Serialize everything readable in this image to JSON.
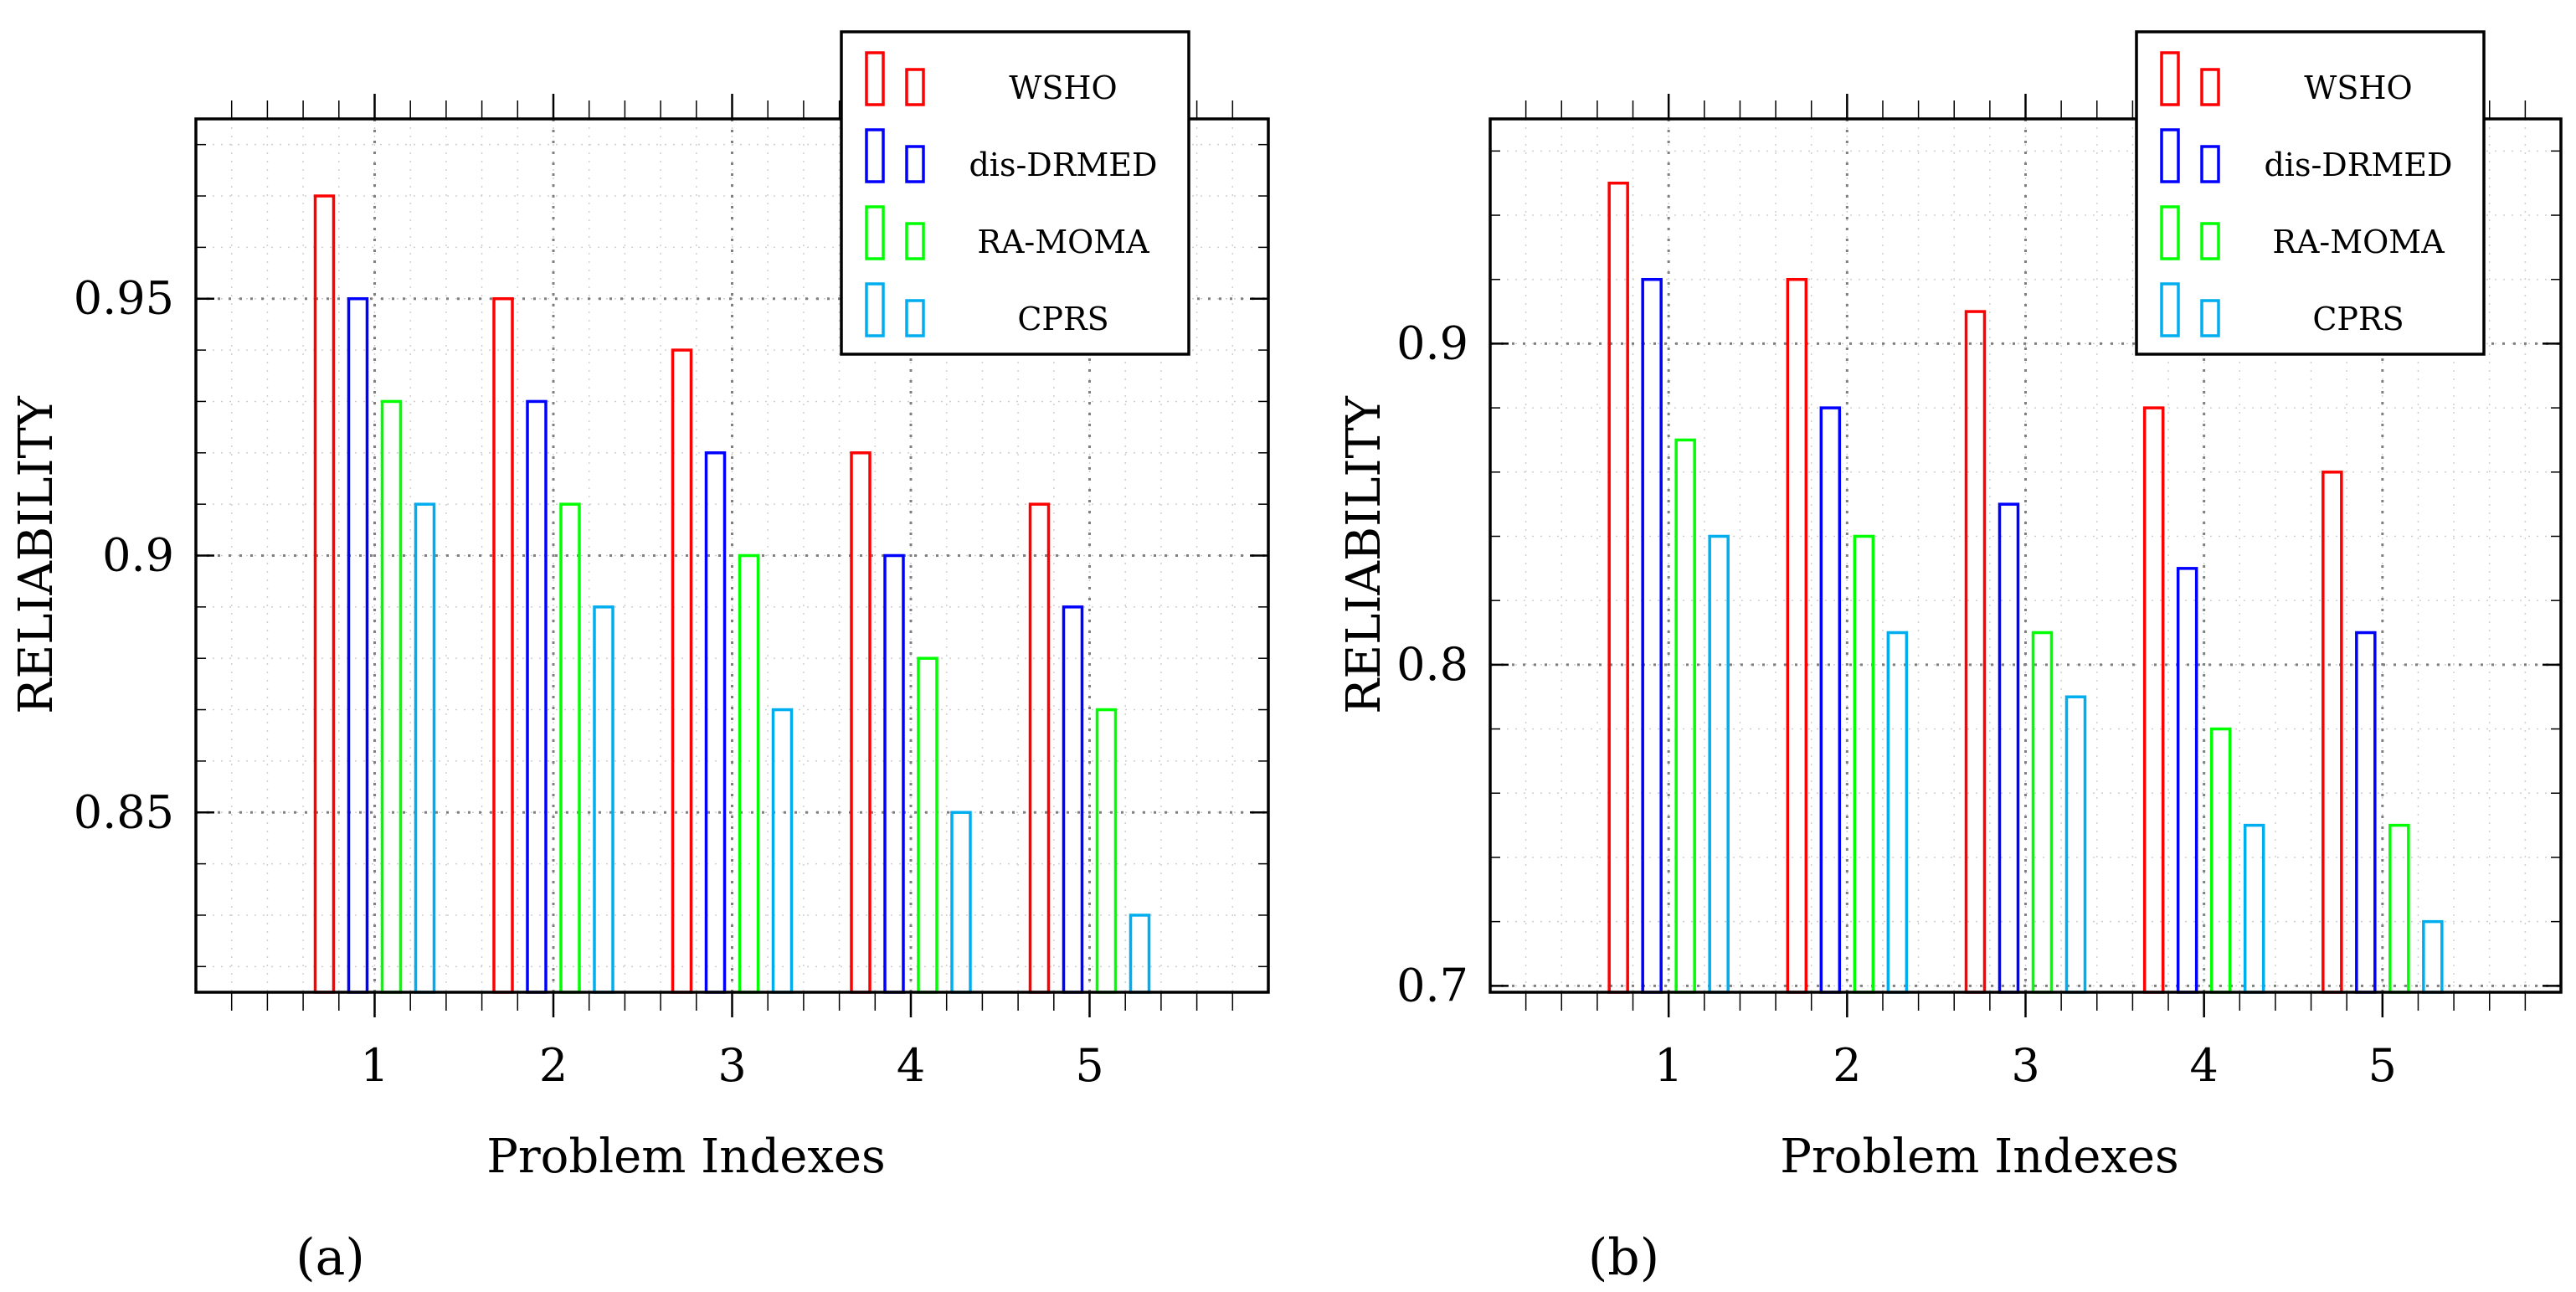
{
  "chart_data": [
    {
      "type": "bar",
      "panel_label": "(a)",
      "xlabel": "Problem Indexes",
      "ylabel": "RELIABILITY",
      "categories": [
        "1",
        "2",
        "3",
        "4",
        "5"
      ],
      "ylim": [
        0.815,
        0.985
      ],
      "yticks": [
        0.85,
        0.9,
        0.95
      ],
      "ytick_labels": [
        "0.85",
        "0.9",
        "0.95"
      ],
      "grid": true,
      "legend_position": "top-right",
      "series": [
        {
          "name": "WSHO",
          "color": "#ff0000",
          "values": [
            0.97,
            0.95,
            0.94,
            0.92,
            0.91
          ]
        },
        {
          "name": "dis-DRMED",
          "color": "#0000ff",
          "values": [
            0.95,
            0.93,
            0.92,
            0.9,
            0.89
          ]
        },
        {
          "name": "RA-MOMA",
          "color": "#00ff00",
          "values": [
            0.93,
            0.91,
            0.9,
            0.88,
            0.87
          ]
        },
        {
          "name": "CPRS",
          "color": "#00aeef",
          "values": [
            0.91,
            0.89,
            0.87,
            0.85,
            0.83
          ]
        }
      ]
    },
    {
      "type": "bar",
      "panel_label": "(b)",
      "xlabel": "Problem Indexes",
      "ylabel": "RELIABILITY",
      "categories": [
        "1",
        "2",
        "3",
        "4",
        "5"
      ],
      "ylim": [
        0.698,
        0.97
      ],
      "yticks": [
        0.7,
        0.8,
        0.9
      ],
      "ytick_labels": [
        "0.7",
        "0.8",
        "0.9"
      ],
      "grid": true,
      "legend_position": "top-right",
      "series": [
        {
          "name": "WSHO",
          "color": "#ff0000",
          "values": [
            0.95,
            0.92,
            0.91,
            0.88,
            0.86
          ]
        },
        {
          "name": "dis-DRMED",
          "color": "#0000ff",
          "values": [
            0.92,
            0.88,
            0.85,
            0.83,
            0.81
          ]
        },
        {
          "name": "RA-MOMA",
          "color": "#00ff00",
          "values": [
            0.87,
            0.84,
            0.81,
            0.78,
            0.75
          ]
        },
        {
          "name": "CPRS",
          "color": "#00aeef",
          "values": [
            0.84,
            0.81,
            0.79,
            0.75,
            0.72
          ]
        }
      ]
    }
  ]
}
